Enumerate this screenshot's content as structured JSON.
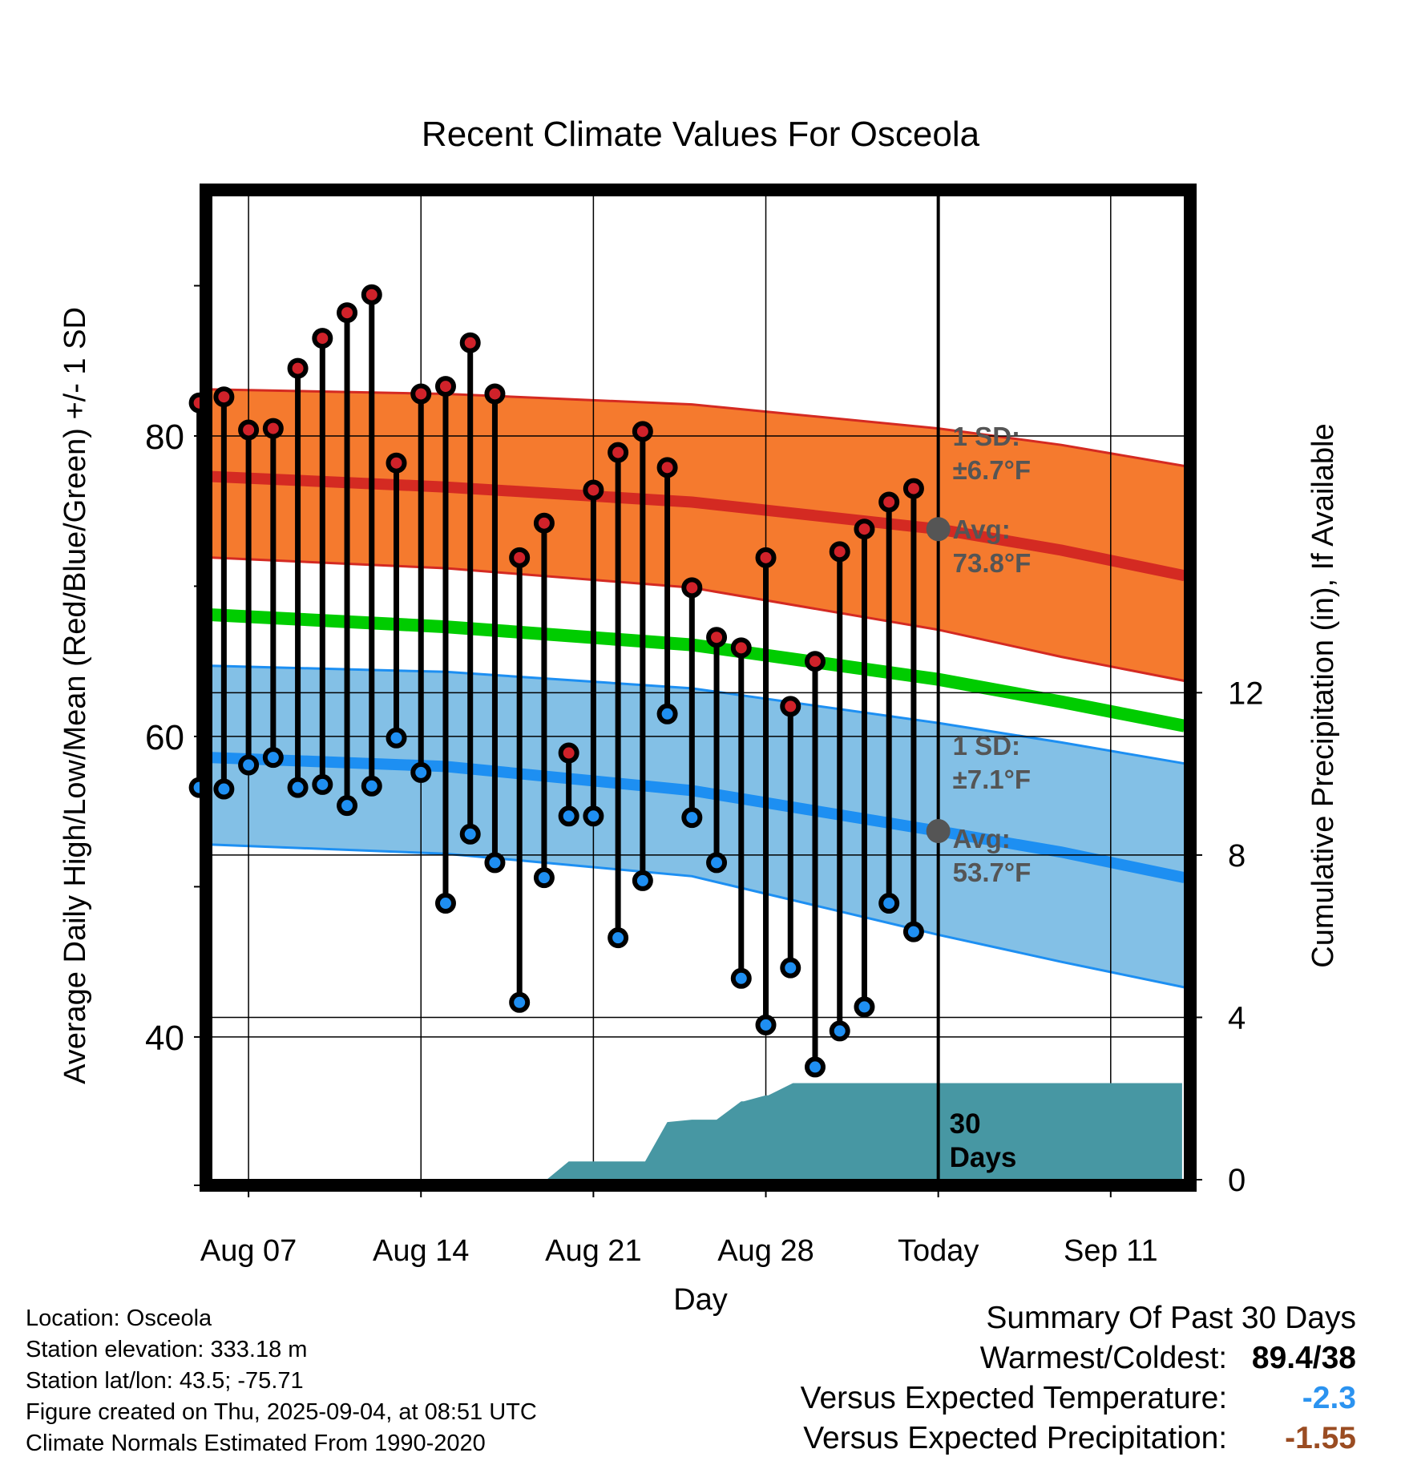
{
  "chart_data": {
    "type": "line",
    "title": "Recent Climate Values For Osceola",
    "xlabel": "Day",
    "ylabel_left": "Average Daily High/Low/Mean (Red/Blue/Green) +/- 1 SD",
    "ylabel_right": "Cumulative Precipitation (in), If Available",
    "x_range_days": [
      -29.5,
      10
    ],
    "ylim_left": [
      30.5,
      96
    ],
    "ylim_right": [
      0,
      24.25
    ],
    "left_ticks": [
      40,
      60,
      80
    ],
    "left_minor_ticks": [
      50,
      70,
      90
    ],
    "right_ticks": [
      0,
      4,
      8,
      12
    ],
    "x_ticks": [
      {
        "day": -28,
        "label": "Aug 07"
      },
      {
        "day": -21,
        "label": "Aug 14"
      },
      {
        "day": -14,
        "label": "Aug 21"
      },
      {
        "day": -7,
        "label": "Aug 28"
      },
      {
        "day": 0,
        "label": "Today"
      },
      {
        "day": 7,
        "label": "Sep 11"
      }
    ],
    "today_label": "Today",
    "days_label_line1": "30",
    "days_label_line2": "Days",
    "normals": {
      "days": [
        -29.5,
        -20,
        -10,
        0,
        5,
        10
      ],
      "high_avg": [
        77.3,
        76.6,
        75.6,
        73.8,
        72.4,
        70.7
      ],
      "high_upper": [
        83.1,
        82.8,
        82.1,
        80.5,
        79.4,
        78.0
      ],
      "high_lower": [
        71.9,
        71.2,
        69.9,
        67.1,
        65.3,
        63.7
      ],
      "mean_avg": [
        68.1,
        67.3,
        66.1,
        63.8,
        62.3,
        60.7
      ],
      "low_avg": [
        58.6,
        58.0,
        56.4,
        53.7,
        52.3,
        50.6
      ],
      "low_upper": [
        64.7,
        64.3,
        63.2,
        60.9,
        59.6,
        58.2
      ],
      "low_lower": [
        52.8,
        52.2,
        50.7,
        46.8,
        45.0,
        43.3
      ]
    },
    "daily_high_low": {
      "days": [
        -30,
        -29,
        -28,
        -27,
        -26,
        -25,
        -24,
        -23,
        -22,
        -21,
        -20,
        -19,
        -18,
        -17,
        -16,
        -15,
        -14,
        -13,
        -12,
        -11,
        -10,
        -9,
        -8,
        -7,
        -6,
        -5,
        -4,
        -3,
        -2,
        -1
      ],
      "high": [
        82.2,
        82.6,
        80.4,
        80.5,
        84.5,
        86.5,
        88.2,
        89.4,
        78.2,
        82.8,
        83.3,
        86.2,
        82.8,
        71.9,
        74.2,
        58.9,
        76.4,
        78.9,
        80.3,
        77.9,
        69.9,
        66.6,
        65.9,
        71.9,
        62.0,
        65.0,
        72.3,
        73.8,
        75.6,
        76.5
      ],
      "low": [
        56.6,
        56.5,
        58.1,
        58.6,
        56.6,
        56.8,
        55.4,
        56.7,
        59.9,
        57.6,
        48.9,
        53.5,
        51.6,
        42.3,
        50.6,
        54.7,
        54.7,
        46.6,
        50.4,
        61.5,
        54.6,
        51.6,
        43.9,
        40.8,
        44.6,
        38.0,
        40.4,
        42.0,
        48.9,
        47.0
      ]
    },
    "precipitation_cumulative": {
      "days": [
        -15.9,
        -15,
        -13,
        -12,
        -11.9,
        -11,
        -10,
        -9,
        -8,
        -7.9,
        -7,
        -6.9,
        -5.9,
        0,
        9.9
      ],
      "values": [
        0,
        0.45,
        0.45,
        0.45,
        0.45,
        1.42,
        1.48,
        1.48,
        1.93,
        1.93,
        2.08,
        2.08,
        2.38,
        2.38,
        2.38
      ]
    },
    "annotations": {
      "high_sd_line1": "1 SD:",
      "high_sd_line2": "±6.7°F",
      "high_avg_line1": "Avg:",
      "high_avg_line2": "73.8°F",
      "high_avg_value": 73.8,
      "low_sd_line1": "1 SD:",
      "low_sd_line2": "±7.1°F",
      "low_avg_line1": "Avg:",
      "low_avg_line2": "53.7°F",
      "low_avg_value": 53.7
    },
    "colors": {
      "high_band": "#f57a2e",
      "high_line": "#d42a22",
      "low_band": "#83c0e6",
      "low_line": "#1d8ff2",
      "mean_line": "#00cc00",
      "precip": "#4797a3",
      "high_dot": "#d0222a",
      "low_dot": "#1f8ff2",
      "annotation": "#555555"
    }
  },
  "info": {
    "location": "Location: Osceola",
    "elevation": "Station elevation: 333.18 m",
    "latlon": "Station lat/lon: 43.5; -75.71",
    "created": "Figure created on Thu, 2025-09-04, at 08:51 UTC",
    "normals": "Climate Normals Estimated From 1990-2020"
  },
  "summary": {
    "title": "Summary Of Past 30 Days",
    "warmest_label": "Warmest/Coldest:",
    "warmest_value": "89.4/38",
    "temp_label": "Versus Expected Temperature:",
    "temp_value": "-2.3",
    "temp_color": "#2b93f0",
    "precip_label": "Versus Expected Precipitation:",
    "precip_value": "-1.55",
    "precip_color": "#9a4c22"
  }
}
